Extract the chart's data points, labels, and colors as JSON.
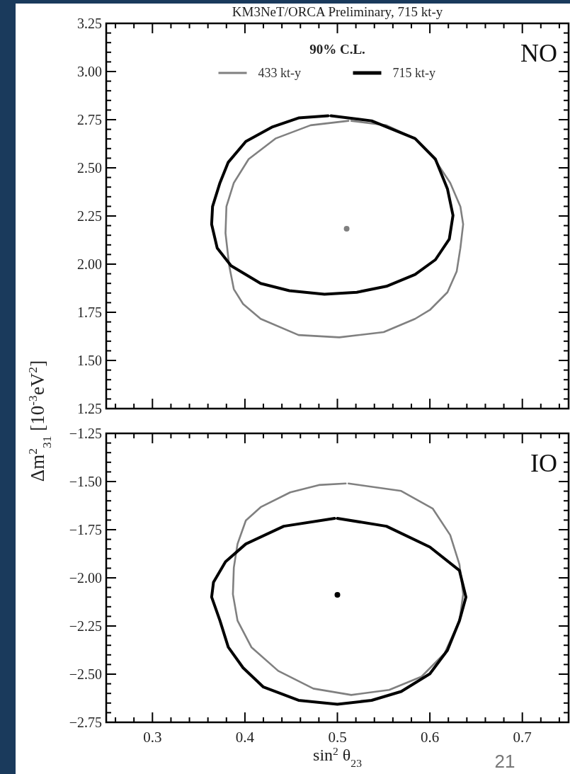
{
  "chart_data": [
    {
      "type": "line",
      "title": "KM3NeT/ORCA Preliminary, 715 kt-y",
      "ylabel": "Δm$^{2}$$_{31}$ [10$^{-3}$eV$^{2}$]",
      "legend_title": "90% C.L.",
      "legend": "top",
      "tick_labels": "y",
      "annotations": [
        "NO"
      ],
      "xlim": [
        0.25,
        0.75
      ],
      "xticks": [
        {
          "value": 0.26,
          "label": null
        },
        {
          "value": 0.28,
          "label": null
        },
        0.3,
        {
          "value": 0.32,
          "label": null
        },
        {
          "value": 0.34,
          "label": null
        },
        {
          "value": 0.36,
          "label": null
        },
        {
          "value": 0.38,
          "label": null
        },
        0.4,
        {
          "value": 0.42,
          "label": null
        },
        {
          "value": 0.44,
          "label": null
        },
        {
          "value": 0.46,
          "label": null
        },
        {
          "value": 0.48,
          "label": null
        },
        0.5,
        {
          "value": 0.52,
          "label": null
        },
        {
          "value": 0.54,
          "label": null
        },
        {
          "value": 0.56,
          "label": null
        },
        {
          "value": 0.58,
          "label": null
        },
        0.6,
        {
          "value": 0.62,
          "label": null
        },
        {
          "value": 0.64,
          "label": null
        },
        {
          "value": 0.66,
          "label": null
        },
        {
          "value": 0.68,
          "label": null
        },
        0.7,
        {
          "value": 0.72,
          "label": null
        },
        {
          "value": 0.74,
          "label": null
        }
      ],
      "ylim": [
        1.25,
        3.25
      ],
      "yticks": [
        {
          "value": 1.25,
          "label": "1.25"
        },
        {
          "value": 1.3,
          "label": null
        },
        {
          "value": 1.35,
          "label": null
        },
        {
          "value": 1.4,
          "label": null
        },
        {
          "value": 1.45,
          "label": null
        },
        {
          "value": 1.5,
          "label": "1.50"
        },
        {
          "value": 1.55,
          "label": null
        },
        {
          "value": 1.6,
          "label": null
        },
        {
          "value": 1.65,
          "label": null
        },
        {
          "value": 1.7,
          "label": null
        },
        {
          "value": 1.75,
          "label": "1.75"
        },
        {
          "value": 1.8,
          "label": null
        },
        {
          "value": 1.85,
          "label": null
        },
        {
          "value": 1.9,
          "label": null
        },
        {
          "value": 1.95,
          "label": null
        },
        {
          "value": 2.0,
          "label": "2.00"
        },
        {
          "value": 2.05,
          "label": null
        },
        {
          "value": 2.1,
          "label": null
        },
        {
          "value": 2.15,
          "label": null
        },
        {
          "value": 2.2,
          "label": null
        },
        {
          "value": 2.25,
          "label": "2.25"
        },
        {
          "value": 2.3,
          "label": null
        },
        {
          "value": 2.35,
          "label": null
        },
        {
          "value": 2.4,
          "label": null
        },
        {
          "value": 2.45,
          "label": null
        },
        {
          "value": 2.5,
          "label": "2.50"
        },
        {
          "value": 2.55,
          "label": null
        },
        {
          "value": 2.6,
          "label": null
        },
        {
          "value": 2.65,
          "label": null
        },
        {
          "value": 2.7,
          "label": null
        },
        {
          "value": 2.75,
          "label": "2.75"
        },
        {
          "value": 2.8,
          "label": null
        },
        {
          "value": 2.85,
          "label": null
        },
        {
          "value": 2.9,
          "label": null
        },
        {
          "value": 2.95,
          "label": null
        },
        {
          "value": 3.0,
          "label": "3.00"
        },
        {
          "value": 3.05,
          "label": null
        },
        {
          "value": 3.1,
          "label": null
        },
        {
          "value": 3.15,
          "label": null
        },
        {
          "value": 3.2,
          "label": null
        },
        {
          "value": 3.25,
          "label": "3.25"
        }
      ],
      "series": [
        {
          "name": "433 kt-y",
          "color": "#808080",
          "x": [
            0.515,
            0.553,
            0.584,
            0.603,
            0.622,
            0.633,
            0.636,
            0.633,
            0.629,
            0.619,
            0.6,
            0.584,
            0.55,
            0.502,
            0.458,
            0.417,
            0.398,
            0.388,
            0.383,
            0.379,
            0.38,
            0.388,
            0.404,
            0.433,
            0.471,
            0.512
          ],
          "values": [
            2.744,
            2.721,
            2.652,
            2.56,
            2.422,
            2.299,
            2.207,
            2.084,
            1.962,
            1.854,
            1.762,
            1.716,
            1.647,
            1.62,
            1.632,
            1.716,
            1.793,
            1.87,
            1.992,
            2.161,
            2.299,
            2.422,
            2.545,
            2.652,
            2.721,
            2.744
          ]
        },
        {
          "name": "715 kt-y",
          "color": "#000000",
          "x": [
            0.493,
            0.537,
            0.584,
            0.606,
            0.619,
            0.625,
            0.621,
            0.606,
            0.584,
            0.553,
            0.521,
            0.486,
            0.448,
            0.417,
            0.385,
            0.37,
            0.364,
            0.365,
            0.373,
            0.382,
            0.401,
            0.43,
            0.458,
            0.49
          ],
          "values": [
            2.77,
            2.744,
            2.652,
            2.545,
            2.391,
            2.253,
            2.13,
            2.023,
            1.946,
            1.885,
            1.854,
            1.844,
            1.862,
            1.9,
            1.992,
            2.084,
            2.207,
            2.299,
            2.422,
            2.529,
            2.637,
            2.713,
            2.759,
            2.77
          ]
        },
        {
          "type": "scatter",
          "marker": "circle",
          "color": "#808080",
          "x": [
            0.51
          ],
          "values": [
            2.184
          ]
        }
      ]
    },
    {
      "type": "line",
      "xlabel": "sin$^{2}$ θ$_{23}$",
      "annotations": [
        "IO",
        "21"
      ],
      "xlim": [
        0.25,
        0.75
      ],
      "xticks": [
        {
          "value": 0.26,
          "label": null
        },
        {
          "value": 0.28,
          "label": null
        },
        0.3,
        {
          "value": 0.32,
          "label": null
        },
        {
          "value": 0.34,
          "label": null
        },
        {
          "value": 0.36,
          "label": null
        },
        {
          "value": 0.38,
          "label": null
        },
        0.4,
        {
          "value": 0.42,
          "label": null
        },
        {
          "value": 0.44,
          "label": null
        },
        {
          "value": 0.46,
          "label": null
        },
        {
          "value": 0.48,
          "label": null
        },
        0.5,
        {
          "value": 0.52,
          "label": null
        },
        {
          "value": 0.54,
          "label": null
        },
        {
          "value": 0.56,
          "label": null
        },
        {
          "value": 0.58,
          "label": null
        },
        0.6,
        {
          "value": 0.62,
          "label": null
        },
        {
          "value": 0.64,
          "label": null
        },
        {
          "value": 0.66,
          "label": null
        },
        {
          "value": 0.68,
          "label": null
        },
        0.7,
        {
          "value": 0.72,
          "label": null
        },
        {
          "value": 0.74,
          "label": null
        }
      ],
      "ylim": [
        -2.75,
        -1.25
      ],
      "yticks": [
        {
          "value": -2.75,
          "label": "−2.75"
        },
        {
          "value": -2.7,
          "label": null
        },
        {
          "value": -2.65,
          "label": null
        },
        {
          "value": -2.6,
          "label": null
        },
        {
          "value": -2.55,
          "label": null
        },
        {
          "value": -2.5,
          "label": "−2.50"
        },
        {
          "value": -2.45,
          "label": null
        },
        {
          "value": -2.4,
          "label": null
        },
        {
          "value": -2.35,
          "label": null
        },
        {
          "value": -2.3,
          "label": null
        },
        {
          "value": -2.25,
          "label": "−2.25"
        },
        {
          "value": -2.2,
          "label": null
        },
        {
          "value": -2.15,
          "label": null
        },
        {
          "value": -2.1,
          "label": null
        },
        {
          "value": -2.05,
          "label": null
        },
        {
          "value": -2.0,
          "label": "−2.00"
        },
        {
          "value": -1.95,
          "label": null
        },
        {
          "value": -1.9,
          "label": null
        },
        {
          "value": -1.85,
          "label": null
        },
        {
          "value": -1.8,
          "label": null
        },
        {
          "value": -1.75,
          "label": "−1.75"
        },
        {
          "value": -1.7,
          "label": null
        },
        {
          "value": -1.65,
          "label": null
        },
        {
          "value": -1.6,
          "label": null
        },
        {
          "value": -1.55,
          "label": null
        },
        {
          "value": -1.5,
          "label": "−1.50"
        },
        {
          "value": -1.45,
          "label": null
        },
        {
          "value": -1.4,
          "label": null
        },
        {
          "value": -1.35,
          "label": null
        },
        {
          "value": -1.3,
          "label": null
        },
        {
          "value": -1.25,
          "label": "−1.25"
        }
      ],
      "series": [
        {
          "color": "#808080",
          "x": [
            0.512,
            0.569,
            0.603,
            0.622,
            0.632,
            0.636,
            0.632,
            0.616,
            0.591,
            0.556,
            0.515,
            0.474,
            0.436,
            0.407,
            0.392,
            0.387,
            0.388,
            0.392,
            0.401,
            0.417,
            0.449,
            0.48,
            0.509
          ],
          "values": [
            -1.51,
            -1.549,
            -1.64,
            -1.778,
            -1.931,
            -2.085,
            -2.222,
            -2.391,
            -2.513,
            -2.582,
            -2.608,
            -2.575,
            -2.483,
            -2.36,
            -2.222,
            -2.085,
            -1.947,
            -1.824,
            -1.702,
            -1.633,
            -1.556,
            -1.518,
            -1.51
          ]
        },
        {
          "color": "#000000",
          "x": [
            0.5,
            0.553,
            0.6,
            0.632,
            0.639,
            0.632,
            0.619,
            0.6,
            0.569,
            0.537,
            0.5,
            0.458,
            0.42,
            0.398,
            0.382,
            0.373,
            0.364,
            0.366,
            0.379,
            0.401,
            0.442,
            0.497
          ],
          "values": [
            -1.691,
            -1.732,
            -1.84,
            -1.962,
            -2.1,
            -2.222,
            -2.376,
            -2.498,
            -2.59,
            -2.636,
            -2.656,
            -2.636,
            -2.567,
            -2.467,
            -2.36,
            -2.222,
            -2.1,
            -2.023,
            -1.916,
            -1.824,
            -1.732,
            -1.691
          ]
        },
        {
          "type": "scatter",
          "marker": "circle",
          "color": "#000000",
          "x": [
            0.5
          ],
          "values": [
            -2.088
          ]
        }
      ]
    }
  ]
}
